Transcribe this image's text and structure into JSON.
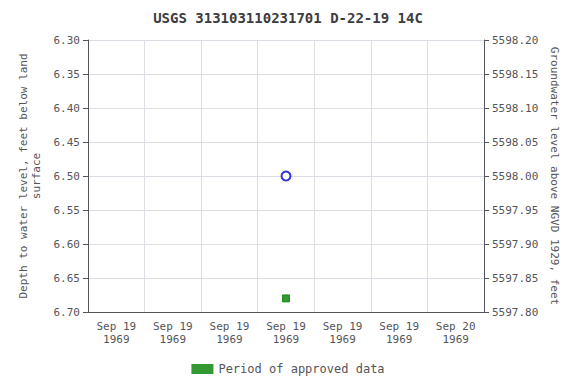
{
  "chart_data": {
    "type": "scatter",
    "title": "USGS 313103110231701 D-22-19 14C",
    "categories": [
      "Sep 19\n1969",
      "Sep 19\n1969",
      "Sep 19\n1969",
      "Sep 19\n1969",
      "Sep 19\n1969",
      "Sep 19\n1969",
      "Sep 20\n1969"
    ],
    "series": [
      {
        "values": [
          null,
          null,
          null,
          6.5,
          null,
          null,
          null
        ],
        "color": "#0000cc",
        "marker": "open circle"
      },
      {
        "name": "Period of approved data",
        "values": [
          null,
          null,
          null,
          6.68,
          null,
          null,
          null
        ],
        "color": "#008000",
        "marker": "square"
      }
    ],
    "ylabel": "Depth to water level, feet below land\nsurface",
    "y2label": "Groundwater level above NGVD 1929, feet",
    "ylim": [
      6.7,
      6.3
    ],
    "yticks": [
      {
        "value": 6.3,
        "label": "6.30"
      },
      6.35,
      {
        "value": 6.4,
        "label": "6.40"
      },
      6.45,
      {
        "value": 6.5,
        "label": "6.50"
      },
      6.55,
      {
        "value": 6.6,
        "label": "6.60"
      },
      6.65,
      {
        "value": 6.7,
        "label": "6.70"
      }
    ],
    "y2lim": [
      5597.8,
      5598.2
    ],
    "y2ticks": [
      {
        "value": 5598.2,
        "label": "5598.20"
      },
      5598.15,
      {
        "value": 5598.1,
        "label": "5598.10"
      },
      5598.05,
      {
        "value": 5598.0,
        "label": "5598.00"
      },
      5597.95,
      {
        "value": 5597.9,
        "label": "5597.90"
      },
      5597.85,
      {
        "value": 5597.8,
        "label": "5597.80"
      }
    ],
    "grid": true,
    "legend": "bottom"
  }
}
